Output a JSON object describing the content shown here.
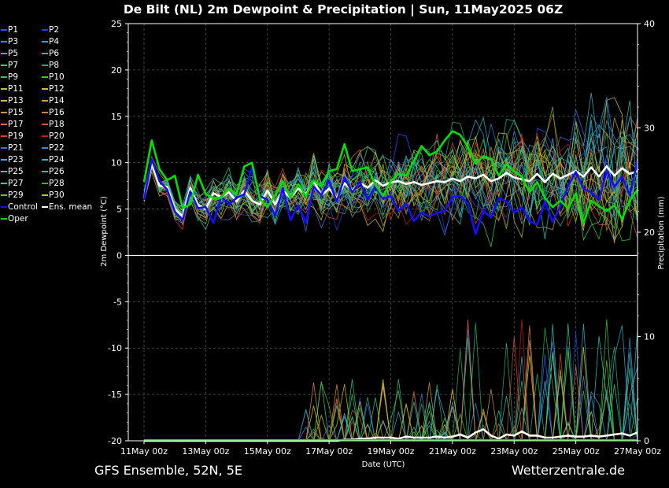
{
  "title": "De Bilt  (NL)  2m Dewpoint & Precipitation | Sun, 11May2025 06Z",
  "footer": {
    "left": "GFS Ensemble, 52N, 5E",
    "right": "Wetterzentrale.de"
  },
  "legend": [
    {
      "name": "P1",
      "color": "#3050ff"
    },
    {
      "name": "P2",
      "color": "#2040e0"
    },
    {
      "name": "P3",
      "color": "#4080d0"
    },
    {
      "name": "P4",
      "color": "#3a9ad8"
    },
    {
      "name": "P5",
      "color": "#30b0c0"
    },
    {
      "name": "P6",
      "color": "#20c0b0"
    },
    {
      "name": "P7",
      "color": "#30c890"
    },
    {
      "name": "P8",
      "color": "#20b070"
    },
    {
      "name": "P9",
      "color": "#40c050"
    },
    {
      "name": "P10",
      "color": "#30d020"
    },
    {
      "name": "P11",
      "color": "#b8c040"
    },
    {
      "name": "P12",
      "color": "#d0c020"
    },
    {
      "name": "P13",
      "color": "#d8c030"
    },
    {
      "name": "P14",
      "color": "#d0a030"
    },
    {
      "name": "P15",
      "color": "#d09050"
    },
    {
      "name": "P16",
      "color": "#d08040"
    },
    {
      "name": "P17",
      "color": "#e07030"
    },
    {
      "name": "P18",
      "color": "#d05030"
    },
    {
      "name": "P19",
      "color": "#e04020"
    },
    {
      "name": "P20",
      "color": "#c02010"
    },
    {
      "name": "P21",
      "color": "#4070e0"
    },
    {
      "name": "P22",
      "color": "#3090d0"
    },
    {
      "name": "P23",
      "color": "#50a0e0"
    },
    {
      "name": "P24",
      "color": "#40b0c0"
    },
    {
      "name": "P25",
      "color": "#30c0b0"
    },
    {
      "name": "P26",
      "color": "#20c898"
    },
    {
      "name": "P27",
      "color": "#40d070"
    },
    {
      "name": "P28",
      "color": "#30b050"
    },
    {
      "name": "P29",
      "color": "#60c030"
    },
    {
      "name": "P30",
      "color": "#c0c020"
    },
    {
      "name": "Control",
      "color": "#1010ff"
    },
    {
      "name": "Ens. mean",
      "color": "#ffffff"
    },
    {
      "name": "Oper",
      "color": "#00e000"
    }
  ],
  "chart_data": {
    "type": "line",
    "title": "De Bilt  (NL)  2m Dewpoint & Precipitation | Sun, 11May2025 06Z",
    "xlabel": "Date (UTC)",
    "ylabel": "2m Dewpoint (°C)",
    "y2label": "Precipitation (mm)",
    "ylim": [
      -20,
      25
    ],
    "y2lim": [
      0,
      40
    ],
    "yticks": [
      25,
      20,
      15,
      10,
      5,
      0,
      -5,
      -10,
      -15,
      -20
    ],
    "y2ticks": [
      40,
      30,
      20,
      10,
      0
    ],
    "x_start": "11May 00z",
    "x_end": "27May 00z",
    "xticks": [
      "11May 00z",
      "13May 00z",
      "15May 00z",
      "17May 00z",
      "19May 00z",
      "21May 00z",
      "23May 00z",
      "25May 00z",
      "27May 00z"
    ],
    "grid": true,
    "legend_position": "left",
    "series": [
      {
        "name": "Ens. mean",
        "axis": "dewpoint",
        "values": [
          6.2,
          9.9,
          7.5,
          7.4,
          5.0,
          4.2,
          7.3,
          5.4,
          5.0,
          6.7,
          6.3,
          6.8,
          5.8,
          7.0,
          5.9,
          5.5,
          7.0,
          5.5,
          7.0,
          6.2,
          7.2,
          6.6,
          8.0,
          6.5,
          7.2,
          6.2,
          7.8,
          7.0,
          7.8,
          7.3,
          8.1,
          7.5,
          7.9,
          8.0,
          7.7,
          7.9,
          7.6,
          7.8,
          8.0,
          7.9,
          8.3,
          8.0,
          8.5,
          8.3,
          8.7,
          8.0,
          8.3,
          8.9,
          8.4,
          8.2,
          8.0,
          8.8,
          7.9,
          8.8,
          8.3,
          8.7,
          9.1,
          8.5,
          9.5,
          8.5,
          9.6,
          8.6,
          9.4,
          8.8,
          9.1
        ]
      },
      {
        "name": "Control",
        "axis": "dewpoint",
        "values": [
          6.0,
          10.4,
          8.0,
          7.1,
          4.7,
          3.8,
          6.9,
          5.1,
          5.2,
          3.5,
          6.3,
          5.5,
          6.2,
          6.6,
          9.5,
          6.4,
          6.0,
          4.3,
          7.2,
          3.8,
          5.4,
          3.5,
          7.4,
          6.5,
          8.0,
          5.8,
          8.4,
          6.8,
          7.9,
          6.0,
          7.4,
          6.1,
          6.4,
          4.8,
          5.6,
          3.7,
          4.6,
          4.2,
          4.6,
          4.8,
          6.3,
          6.4,
          5.6,
          2.3,
          4.8,
          4.1,
          6.2,
          5.8,
          4.6,
          5.2,
          3.7,
          3.3,
          5.8,
          3.6,
          5.3,
          7.5,
          9.0,
          7.2,
          6.8,
          6.0,
          9.1,
          7.4,
          8.5,
          6.5,
          10.2
        ]
      },
      {
        "name": "Oper",
        "axis": "dewpoint",
        "values": [
          7.9,
          12.4,
          9.3,
          8.1,
          8.6,
          5.1,
          5.5,
          8.7,
          6.6,
          6.2,
          6.2,
          7.2,
          6.6,
          9.6,
          10.0,
          6.1,
          5.2,
          6.5,
          8.0,
          6.2,
          7.7,
          6.4,
          8.1,
          7.4,
          9.1,
          9.3,
          12.0,
          9.1,
          9.3,
          9.5,
          7.6,
          6.4,
          8.0,
          8.8,
          8.6,
          10.2,
          11.8,
          10.8,
          11.2,
          12.4,
          13.4,
          13.0,
          11.7,
          9.9,
          10.7,
          10.4,
          8.6,
          9.8,
          9.1,
          8.5,
          6.8,
          7.9,
          6.2,
          5.2,
          5.9,
          5.1,
          6.7,
          3.5,
          5.9,
          5.3,
          4.8,
          5.4,
          3.9,
          5.9,
          7.1
        ]
      },
      {
        "name": "Ens. mean precipitation",
        "axis": "precipitation",
        "values": [
          0,
          0,
          0,
          0,
          0,
          0,
          0,
          0,
          0,
          0,
          0,
          0,
          0,
          0,
          0,
          0,
          0,
          0,
          0,
          0,
          0,
          0,
          0,
          0,
          0,
          0,
          0.1,
          0.1,
          0.2,
          0.2,
          0.3,
          0.3,
          0.3,
          0.2,
          0.4,
          0.3,
          0.3,
          0.3,
          0.4,
          0.3,
          0.4,
          0.6,
          0.3,
          0.8,
          1.1,
          0.5,
          0.2,
          0.6,
          0.5,
          0.9,
          0.5,
          0.5,
          0.3,
          0.3,
          0.4,
          0.5,
          0.4,
          0.4,
          0.5,
          0.4,
          0.5,
          0.6,
          0.7,
          0.5,
          0.8
        ]
      }
    ]
  }
}
